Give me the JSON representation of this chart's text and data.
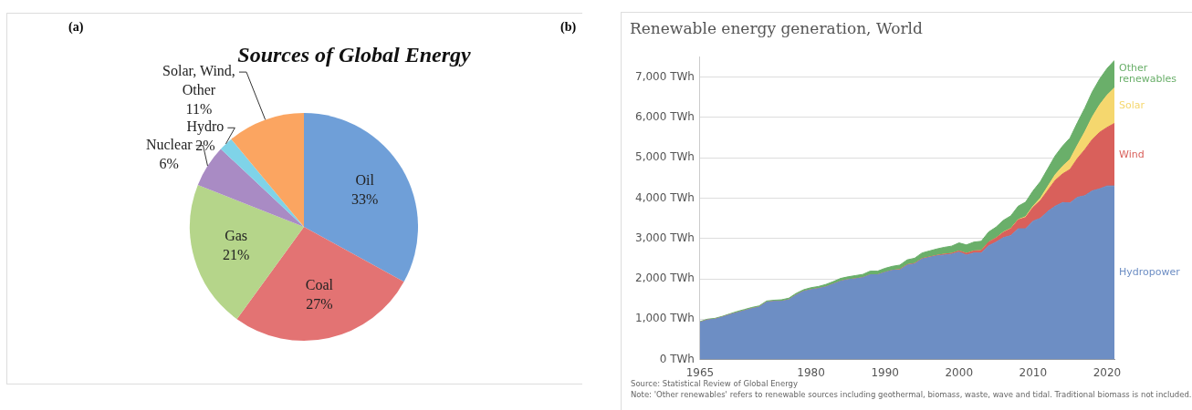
{
  "chart_data": [
    {
      "type": "pie",
      "title": "Sources of Global Energy",
      "annotations": [
        "(a)"
      ],
      "categories": [
        "Oil",
        "Coal",
        "Gas",
        "Nuclear",
        "Hydro",
        "Solar, Wind, Other"
      ],
      "values": [
        33,
        27,
        21,
        6,
        2,
        11
      ],
      "value_labels": [
        "33%",
        "27%",
        "21%",
        "6%",
        "2%",
        "11%"
      ],
      "colors": [
        "#6f9fd8",
        "#e37373",
        "#b5d58a",
        "#a98bc4",
        "#7fd3e8",
        "#fba561"
      ]
    },
    {
      "type": "area",
      "stacked": true,
      "title": "Renewable energy generation, World",
      "legend": "right",
      "grid": "y",
      "annotations": [
        "(b)",
        "Source: Statistical Review of Global Energy",
        "Note: 'Other renewables' refers to renewable sources including geothermal, biomass, waste, wave and tidal. Traditional biomass is not included."
      ],
      "x": [
        1965,
        1966,
        1967,
        1968,
        1969,
        1970,
        1971,
        1972,
        1973,
        1974,
        1975,
        1976,
        1977,
        1978,
        1979,
        1980,
        1981,
        1982,
        1983,
        1984,
        1985,
        1986,
        1987,
        1988,
        1989,
        1990,
        1991,
        1992,
        1993,
        1994,
        1995,
        1996,
        1997,
        1998,
        1999,
        2000,
        2001,
        2002,
        2003,
        2004,
        2005,
        2006,
        2007,
        2008,
        2009,
        2010,
        2011,
        2012,
        2013,
        2014,
        2015,
        2016,
        2017,
        2018,
        2019,
        2020,
        2021
      ],
      "xlim": [
        1965,
        2021
      ],
      "xticks": [
        1965,
        1980,
        1990,
        2000,
        2010,
        2020
      ],
      "ylim": [
        0,
        7500
      ],
      "yticks": [
        {
          "value": 0,
          "label": "0 TWh"
        },
        {
          "value": 1000,
          "label": "1,000 TWh"
        },
        {
          "value": 2000,
          "label": "2,000 TWh"
        },
        {
          "value": 3000,
          "label": "3,000 TWh"
        },
        {
          "value": 4000,
          "label": "4,000 TWh"
        },
        {
          "value": 5000,
          "label": "5,000 TWh"
        },
        {
          "value": 6000,
          "label": "6,000 TWh"
        },
        {
          "value": 7000,
          "label": "7,000 TWh"
        }
      ],
      "series": [
        {
          "name": "Hydropower",
          "color": "#6d8ec4",
          "values": [
            920,
            980,
            1000,
            1050,
            1110,
            1160,
            1210,
            1260,
            1300,
            1420,
            1440,
            1440,
            1480,
            1600,
            1690,
            1730,
            1760,
            1800,
            1870,
            1940,
            1980,
            2000,
            2030,
            2100,
            2100,
            2160,
            2210,
            2220,
            2340,
            2370,
            2490,
            2530,
            2570,
            2590,
            2610,
            2660,
            2590,
            2640,
            2640,
            2820,
            2910,
            3020,
            3070,
            3240,
            3240,
            3430,
            3500,
            3670,
            3800,
            3890,
            3880,
            4020,
            4060,
            4180,
            4230,
            4300,
            4300
          ]
        },
        {
          "name": "Wind",
          "color": "#d9605b",
          "values": [
            0,
            0,
            0,
            0,
            0,
            0,
            0,
            0,
            0,
            0,
            0,
            0,
            0,
            0,
            0,
            0,
            0,
            0,
            0,
            0,
            0,
            0,
            0,
            0,
            0,
            0,
            0,
            10,
            10,
            10,
            10,
            10,
            10,
            20,
            20,
            30,
            40,
            50,
            60,
            90,
            100,
            130,
            170,
            220,
            280,
            340,
            440,
            520,
            640,
            710,
            830,
            960,
            1140,
            1270,
            1400,
            1450,
            1550
          ]
        },
        {
          "name": "Solar",
          "color": "#f5d76e",
          "values": [
            0,
            0,
            0,
            0,
            0,
            0,
            0,
            0,
            0,
            0,
            0,
            0,
            0,
            0,
            0,
            0,
            0,
            0,
            0,
            0,
            0,
            0,
            0,
            0,
            0,
            0,
            0,
            0,
            0,
            0,
            0,
            0,
            0,
            0,
            0,
            0,
            0,
            0,
            0,
            0,
            0,
            10,
            10,
            10,
            20,
            30,
            60,
            100,
            140,
            190,
            250,
            330,
            440,
            560,
            680,
            800,
            880
          ]
        },
        {
          "name": "Other renewables",
          "color": "#6aaf6a",
          "values": [
            20,
            20,
            20,
            20,
            20,
            30,
            30,
            30,
            30,
            30,
            30,
            40,
            40,
            40,
            40,
            50,
            50,
            60,
            60,
            70,
            70,
            80,
            80,
            90,
            90,
            100,
            100,
            110,
            120,
            130,
            140,
            150,
            160,
            170,
            180,
            200,
            210,
            220,
            230,
            250,
            270,
            290,
            310,
            330,
            360,
            380,
            410,
            440,
            470,
            500,
            530,
            560,
            590,
            620,
            640,
            660,
            680
          ]
        }
      ]
    }
  ]
}
